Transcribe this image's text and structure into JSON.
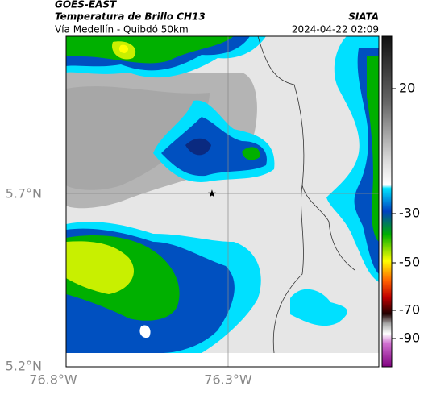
{
  "header": {
    "source": "GOES-EAST",
    "title": "Temperatura de Brillo CH13",
    "subtitle": "Vía Medellín - Quibdó 50km",
    "agency": "SIATA",
    "timestamp": "2024-04-22 02:09"
  },
  "map": {
    "lat_labels": [
      "5.7°N",
      "5.2°N"
    ],
    "lon_labels": [
      "76.8°W",
      "76.3°W"
    ]
  },
  "colorbar": {
    "ticks": [
      20,
      -30,
      -50,
      -70,
      -90
    ]
  }
}
